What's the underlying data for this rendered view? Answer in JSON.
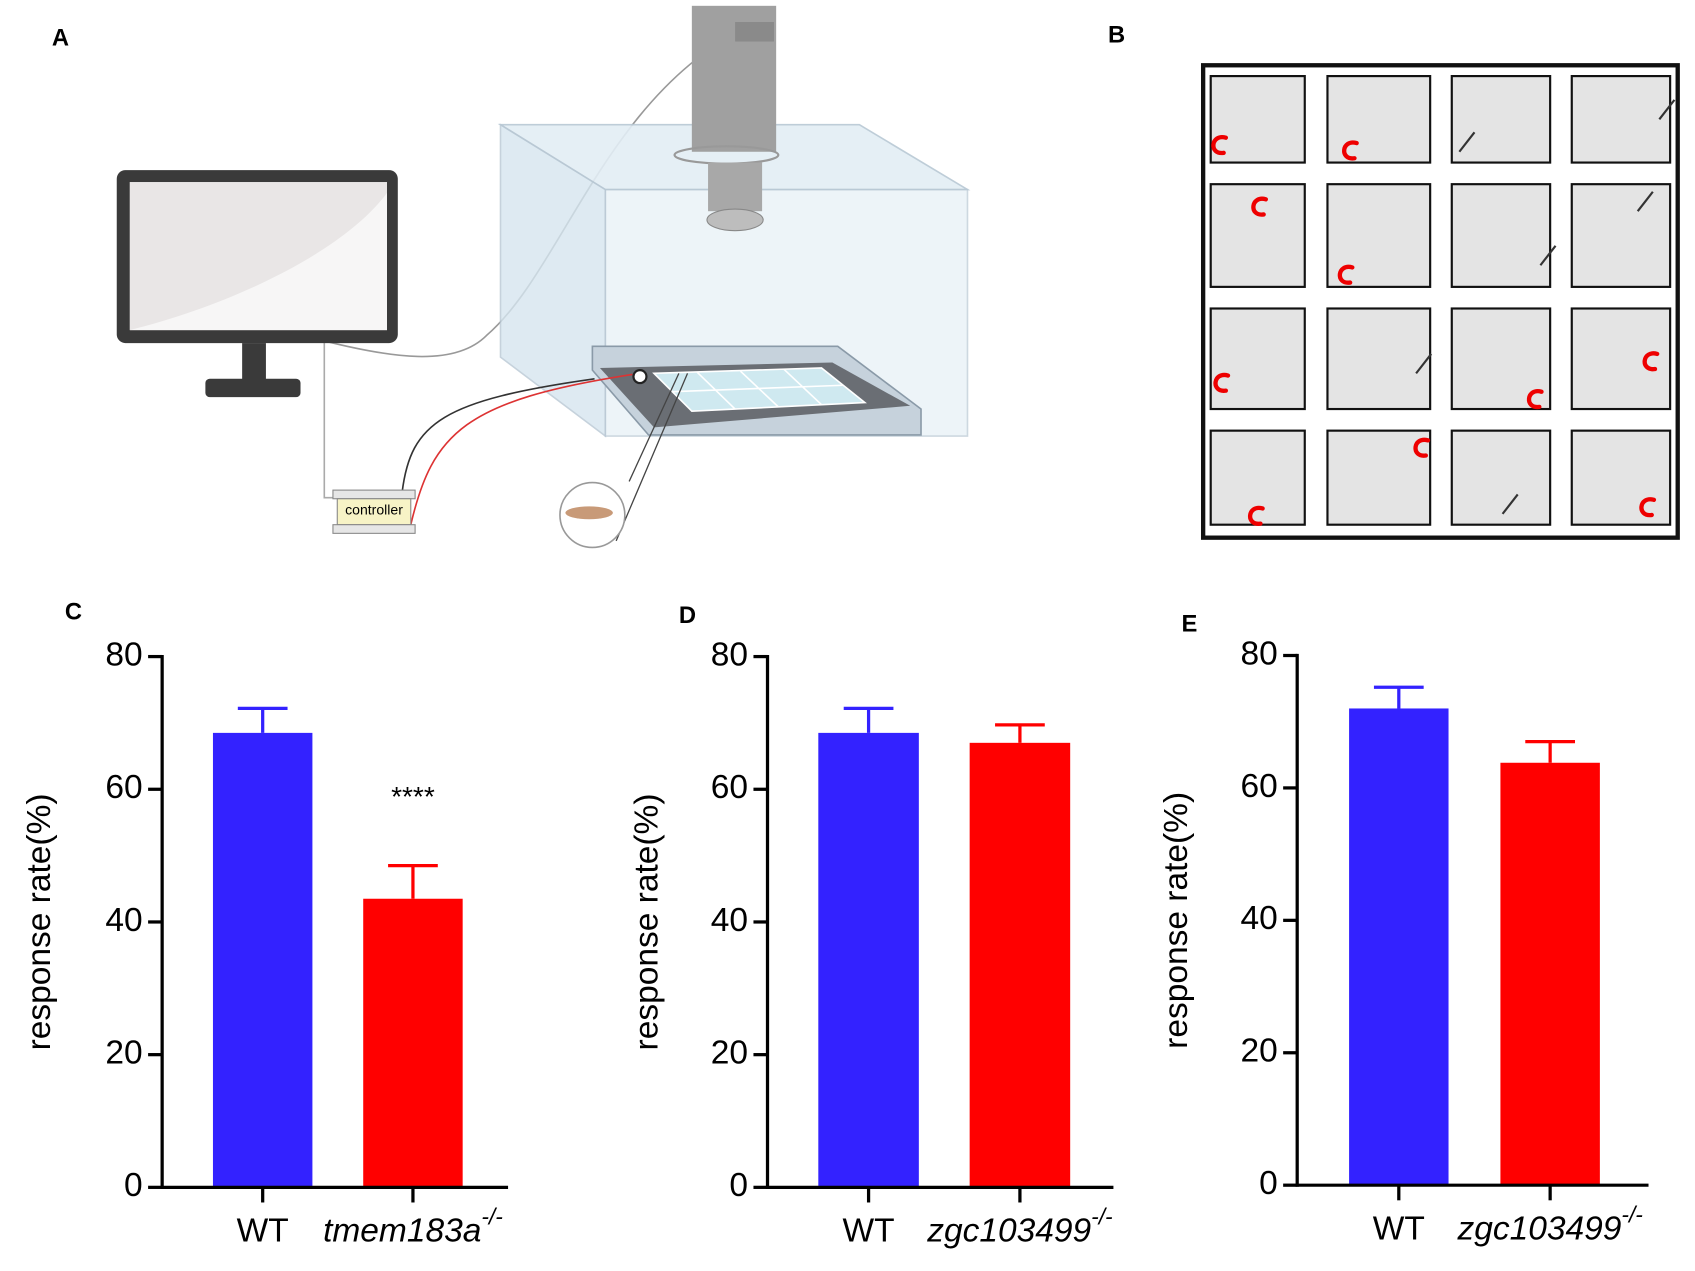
{
  "panels": {
    "A": {
      "label": "A",
      "controller": "controller"
    },
    "B": {
      "label": "B"
    }
  },
  "chart_data": [
    {
      "type": "bar",
      "label": "C",
      "ylabel": "response rate(%)",
      "categories": [
        "WT",
        "tmem183a"
      ],
      "category_superscripts": [
        null,
        "-/-"
      ],
      "values": [
        68.5,
        43.5
      ],
      "errors": [
        3.7,
        5.0
      ],
      "colors": [
        "#3322ff",
        "#ff0000"
      ],
      "annotation": "****",
      "annotation_category": 1,
      "ylim": [
        0,
        80
      ],
      "yticks": [
        0,
        20,
        40,
        60,
        80
      ]
    },
    {
      "type": "bar",
      "label": "D",
      "ylabel": "response rate(%)",
      "categories": [
        "WT",
        "zgc103499"
      ],
      "category_superscripts": [
        null,
        "-/-"
      ],
      "values": [
        68.5,
        67.0
      ],
      "errors": [
        3.7,
        2.7
      ],
      "colors": [
        "#3322ff",
        "#ff0000"
      ],
      "ylim": [
        0,
        80
      ],
      "yticks": [
        0,
        20,
        40,
        60,
        80
      ]
    },
    {
      "type": "bar",
      "label": "E",
      "ylabel": "response rate(%)",
      "categories": [
        "WT",
        "zgc103499"
      ],
      "category_superscripts": [
        null,
        "-/-"
      ],
      "values": [
        72.0,
        63.8
      ],
      "errors": [
        3.2,
        3.2
      ],
      "colors": [
        "#3322ff",
        "#ff0000"
      ],
      "ylim": [
        0,
        80
      ],
      "yticks": [
        0,
        20,
        40,
        60,
        80
      ]
    }
  ]
}
